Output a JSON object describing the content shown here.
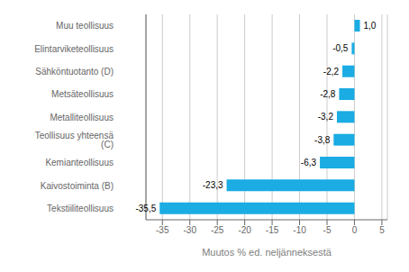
{
  "chart_data": {
    "type": "bar",
    "orientation": "horizontal",
    "categories": [
      "Tekstiiliteollisuus",
      "Kaivostoiminta (B)",
      "Kemianteollisuus",
      "Teollisuus yhteensä (C)",
      "Metalliteollisuus",
      "Metsäteollisuus",
      "Sähköntuotanto (D)",
      "Elintarviketeollisuus",
      "Muu teollisuus"
    ],
    "values": [
      -35.5,
      -23.3,
      -6.3,
      -3.8,
      -3.2,
      -2.8,
      -2.2,
      -0.5,
      1.0
    ],
    "value_labels": [
      "-35,5",
      "-23,3",
      "-6,3",
      "-3,8",
      "-3,2",
      "-2,8",
      "-2,2",
      "-0,5",
      "1,0"
    ],
    "data_labels": true,
    "color": "#1aace3",
    "xlabel": "Muutos % ed. neljänneksestä",
    "xlim": [
      -38,
      6
    ],
    "xticks": [
      -35,
      -30,
      -25,
      -20,
      -15,
      -10,
      -5,
      0,
      5
    ],
    "grid": true
  }
}
